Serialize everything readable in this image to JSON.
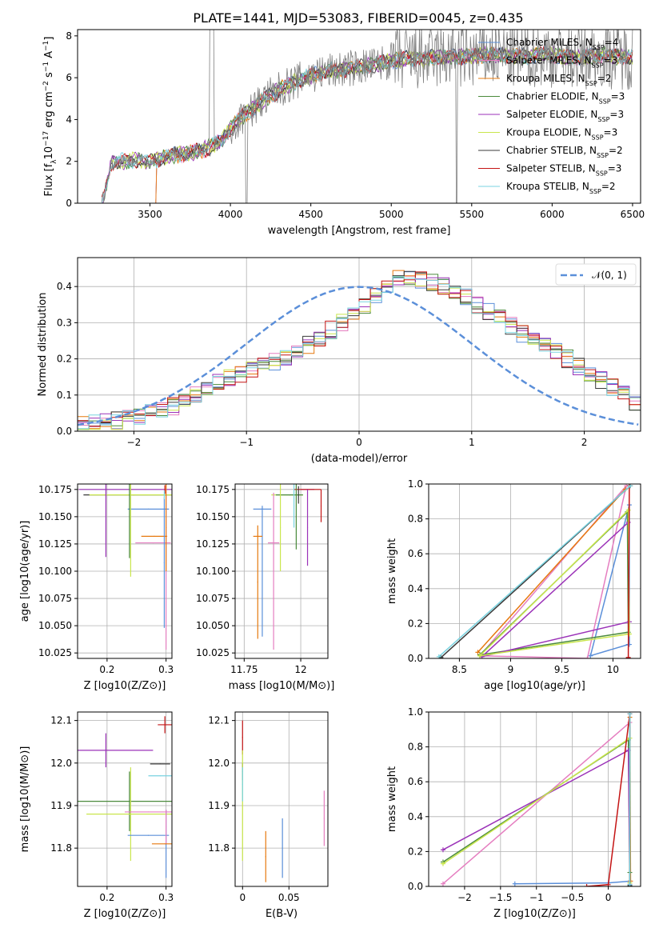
{
  "figure_title": "PLATE=1441, MJD=53083, FIBERID=0045, z=0.435",
  "colors": {
    "chabrier_miles": "#5b8fd9",
    "salpeter_miles": "#e57ec0",
    "kroupa_miles": "#e6790f",
    "chabrier_elodie": "#4a8a3c",
    "salpeter_elodie": "#9b32b8",
    "kroupa_elodie": "#c9e64c",
    "chabrier_stelib": "#3a3a3a",
    "salpeter_stelib": "#c41414",
    "kroupa_stelib": "#79d3e0",
    "data_grey": "#808080",
    "normal_curve": "#5b8fd9"
  },
  "chart_data": [
    {
      "type": "line",
      "name": "spectrum",
      "xlabel": "wavelength [Angstrom, rest frame]",
      "ylabel_parts": [
        "Flux [f",
        "λ",
        "10",
        "−17",
        " erg cm",
        "−2",
        " s",
        "−1",
        " A",
        "−1",
        "]"
      ],
      "xlim": [
        3050,
        6550
      ],
      "ylim": [
        0,
        8.3
      ],
      "xticks": [
        3500,
        4000,
        4500,
        5000,
        5500,
        6000,
        6500
      ],
      "yticks": [
        0,
        2,
        4,
        6,
        8
      ],
      "legend_position": "top-right",
      "legend": [
        {
          "base": "Chabrier MILES, N",
          "sub": "SSP",
          "tail": "=4",
          "color_key": "chabrier_miles"
        },
        {
          "base": "Salpeter MILES, N",
          "sub": "SSP",
          "tail": "=3",
          "color_key": "salpeter_miles"
        },
        {
          "base": "Kroupa MILES, N",
          "sub": "SSP",
          "tail": "=2",
          "color_key": "kroupa_miles"
        },
        {
          "base": "Chabrier ELODIE, N",
          "sub": "SSP",
          "tail": "=3",
          "color_key": "chabrier_elodie"
        },
        {
          "base": "Salpeter ELODIE, N",
          "sub": "SSP",
          "tail": "=3",
          "color_key": "salpeter_elodie"
        },
        {
          "base": "Kroupa ELODIE, N",
          "sub": "SSP",
          "tail": "=3",
          "color_key": "kroupa_elodie"
        },
        {
          "base": "Chabrier STELIB, N",
          "sub": "SSP",
          "tail": "=2",
          "color_key": "chabrier_stelib"
        },
        {
          "base": "Salpeter STELIB, N",
          "sub": "SSP",
          "tail": "=3",
          "color_key": "salpeter_stelib"
        },
        {
          "base": "Kroupa STELIB, N",
          "sub": "SSP",
          "tail": "=2",
          "color_key": "kroupa_stelib"
        }
      ],
      "continuum": {
        "x": [
          3200,
          3260,
          3300,
          3400,
          3500,
          3550,
          3650,
          3750,
          3850,
          3950,
          4000,
          4100,
          4200,
          4300,
          4400,
          4500,
          4600,
          4700,
          4800,
          4900,
          5000,
          5100,
          5200,
          5300,
          5400,
          5500,
          5600,
          5700,
          5800,
          5900,
          6000,
          6100,
          6200,
          6300,
          6400,
          6500
        ],
        "y": [
          0,
          1.9,
          2.0,
          2.05,
          2.0,
          2.1,
          2.3,
          2.4,
          2.6,
          3.0,
          3.6,
          4.3,
          4.9,
          5.4,
          5.8,
          6.1,
          6.3,
          6.4,
          6.5,
          6.6,
          6.8,
          6.9,
          6.9,
          7.0,
          7.0,
          7.0,
          7.1,
          7.1,
          7.0,
          7.1,
          7.1,
          7.0,
          7.0,
          7.1,
          7.0,
          7.0
        ]
      }
    },
    {
      "type": "histogram",
      "name": "residuals",
      "xlabel": "(data-model)/error",
      "ylabel": "Normed distribution",
      "xlim": [
        -2.5,
        2.5
      ],
      "ylim": [
        0,
        0.48
      ],
      "xticks": [
        -2,
        -1,
        0,
        1,
        2
      ],
      "yticks": [
        0.0,
        0.1,
        0.2,
        0.3,
        0.4
      ],
      "grid": true,
      "legend_position": "top-right",
      "normal_label": "𝒩(0, 1)",
      "bin_width": 0.1,
      "envelope": [
        0.02,
        0.025,
        0.03,
        0.03,
        0.035,
        0.04,
        0.05,
        0.06,
        0.07,
        0.085,
        0.1,
        0.12,
        0.14,
        0.15,
        0.16,
        0.17,
        0.18,
        0.19,
        0.2,
        0.22,
        0.24,
        0.26,
        0.28,
        0.3,
        0.32,
        0.35,
        0.38,
        0.4,
        0.42,
        0.43,
        0.42,
        0.41,
        0.4,
        0.38,
        0.37,
        0.35,
        0.33,
        0.31,
        0.29,
        0.27,
        0.26,
        0.24,
        0.22,
        0.2,
        0.18,
        0.16,
        0.14,
        0.12,
        0.1,
        0.08
      ]
    },
    {
      "type": "scatter",
      "name": "age_vs_Z",
      "xlabel": "Z [log10(Z/Z⊙)]",
      "ylabel": "age  [log10(age/yr)]",
      "xlim": [
        0.15,
        0.31
      ],
      "ylim": [
        10.02,
        10.18
      ],
      "xticks": [
        0.2,
        0.3
      ],
      "yticks": [
        10.025,
        10.05,
        10.075,
        10.1,
        10.125,
        10.15,
        10.175
      ],
      "grid": true,
      "points": [
        {
          "x": 0.242,
          "y": 10.175,
          "xerr": 0.09,
          "yerr": 0.0,
          "color_key": "salpeter_elodie"
        },
        {
          "x": 0.245,
          "y": 10.17,
          "xerr": 0.085,
          "yerr": 0.0,
          "color_key": "chabrier_stelib"
        },
        {
          "x": 0.24,
          "y": 10.17,
          "xerr": 0.07,
          "yerr": 0.0,
          "color_key": "kroupa_elodie"
        },
        {
          "x": 0.27,
          "y": 10.157,
          "xerr": 0.035,
          "yerr": 0.0,
          "color_key": "chabrier_miles"
        },
        {
          "x": 0.198,
          "y": 10.17,
          "xerr": 0.0,
          "yerr": 0.057,
          "color_key": "salpeter_elodie"
        },
        {
          "x": 0.238,
          "y": 10.17,
          "xerr": 0.0,
          "yerr": 0.058,
          "color_key": "chabrier_elodie"
        },
        {
          "x": 0.24,
          "y": 10.15,
          "xerr": 0.0,
          "yerr": 0.055,
          "color_key": "kroupa_elodie"
        },
        {
          "x": 0.28,
          "y": 10.132,
          "xerr": 0.022,
          "yerr": 0.0,
          "color_key": "kroupa_miles"
        },
        {
          "x": 0.278,
          "y": 10.126,
          "xerr": 0.03,
          "yerr": 0.0,
          "color_key": "salpeter_miles"
        },
        {
          "x": 0.3,
          "y": 10.11,
          "xerr": 0.0,
          "yerr": 0.082,
          "color_key": "salpeter_miles"
        },
        {
          "x": 0.297,
          "y": 10.108,
          "xerr": 0.0,
          "yerr": 0.06,
          "color_key": "chabrier_miles"
        },
        {
          "x": 0.3,
          "y": 10.14,
          "xerr": 0.0,
          "yerr": 0.04,
          "color_key": "kroupa_miles"
        },
        {
          "x": 0.298,
          "y": 10.175,
          "xerr": 0.0,
          "yerr": 0.004,
          "color_key": "salpeter_stelib"
        },
        {
          "x": 0.297,
          "y": 10.17,
          "xerr": 0.0,
          "yerr": 0.004,
          "color_key": "kroupa_stelib"
        }
      ]
    },
    {
      "type": "scatter",
      "name": "age_vs_mass",
      "xlabel": "mass [log10(M/M⊙)]",
      "xlim": [
        11.71,
        12.12
      ],
      "ylim": [
        10.02,
        10.18
      ],
      "xticks": [
        11.75,
        12.0
      ],
      "yticks": [
        10.025,
        10.05,
        10.075,
        10.1,
        10.125,
        10.15,
        10.175
      ],
      "grid": true,
      "points": [
        {
          "x": 11.83,
          "y": 10.157,
          "xerr": 0.04,
          "yerr": 0.0,
          "color_key": "chabrier_miles"
        },
        {
          "x": 11.94,
          "y": 10.17,
          "xerr": 0.07,
          "yerr": 0.0,
          "color_key": "kroupa_elodie"
        },
        {
          "x": 11.95,
          "y": 10.17,
          "xerr": 0.06,
          "yerr": 0.0,
          "color_key": "chabrier_elodie"
        },
        {
          "x": 12.03,
          "y": 10.175,
          "xerr": 0.03,
          "yerr": 0.0,
          "color_key": "salpeter_elodie"
        },
        {
          "x": 12.03,
          "y": 10.175,
          "xerr": 0.06,
          "yerr": 0.0,
          "color_key": "salpeter_stelib"
        },
        {
          "x": 12.09,
          "y": 10.16,
          "xerr": 0.0,
          "yerr": 0.015,
          "color_key": "salpeter_stelib"
        },
        {
          "x": 11.99,
          "y": 10.17,
          "xerr": 0.0,
          "yerr": 0.008,
          "color_key": "chabrier_stelib"
        },
        {
          "x": 11.83,
          "y": 10.1,
          "xerr": 0.0,
          "yerr": 0.06,
          "color_key": "chabrier_miles"
        },
        {
          "x": 11.81,
          "y": 10.09,
          "xerr": 0.0,
          "yerr": 0.052,
          "color_key": "kroupa_miles"
        },
        {
          "x": 11.88,
          "y": 10.1,
          "xerr": 0.0,
          "yerr": 0.072,
          "color_key": "salpeter_miles"
        },
        {
          "x": 11.81,
          "y": 10.132,
          "xerr": 0.02,
          "yerr": 0.0,
          "color_key": "kroupa_miles"
        },
        {
          "x": 11.88,
          "y": 10.126,
          "xerr": 0.025,
          "yerr": 0.0,
          "color_key": "salpeter_miles"
        },
        {
          "x": 11.91,
          "y": 10.14,
          "xerr": 0.0,
          "yerr": 0.04,
          "color_key": "kroupa_elodie"
        },
        {
          "x": 11.98,
          "y": 10.15,
          "xerr": 0.0,
          "yerr": 0.03,
          "color_key": "chabrier_elodie"
        },
        {
          "x": 12.03,
          "y": 10.14,
          "xerr": 0.0,
          "yerr": 0.035,
          "color_key": "salpeter_elodie"
        },
        {
          "x": 11.97,
          "y": 10.16,
          "xerr": 0.0,
          "yerr": 0.02,
          "color_key": "kroupa_stelib"
        }
      ]
    },
    {
      "type": "line",
      "name": "mass_weight_vs_age",
      "xlabel": "age  [log10(age/yr)]",
      "ylabel": "mass weight",
      "xlim": [
        8.2,
        10.27
      ],
      "ylim": [
        0,
        1
      ],
      "xticks": [
        8.5,
        9.0,
        9.5,
        10.0
      ],
      "yticks": [
        0.0,
        0.2,
        0.4,
        0.6,
        0.8,
        1.0
      ],
      "grid": true,
      "series": [
        {
          "color_key": "chabrier_miles",
          "x": [
            10.15,
            9.78,
            10.16,
            10.16
          ],
          "y": [
            0.08,
            0.015,
            0.88,
            0.08
          ]
        },
        {
          "color_key": "salpeter_miles",
          "x": [
            8.7,
            9.75,
            10.13,
            8.7
          ],
          "y": [
            0.015,
            0.0,
            0.99,
            0.015
          ]
        },
        {
          "color_key": "kroupa_miles",
          "x": [
            8.68,
            10.12
          ],
          "y": [
            0.035,
            0.97
          ]
        },
        {
          "color_key": "chabrier_elodie",
          "x": [
            8.7,
            10.14,
            10.15,
            8.7
          ],
          "y": [
            0.02,
            0.84,
            0.15,
            0.02
          ]
        },
        {
          "color_key": "salpeter_elodie",
          "x": [
            8.72,
            10.15,
            10.16,
            8.72
          ],
          "y": [
            0.01,
            0.78,
            0.21,
            0.01
          ]
        },
        {
          "color_key": "kroupa_elodie",
          "x": [
            8.7,
            10.15,
            10.16,
            8.7
          ],
          "y": [
            0.015,
            0.85,
            0.14,
            0.015
          ]
        },
        {
          "color_key": "chabrier_stelib",
          "x": [
            8.32,
            10.17
          ],
          "y": [
            0.005,
            0.99
          ]
        },
        {
          "color_key": "salpeter_stelib",
          "x": [
            10.15,
            10.16
          ],
          "y": [
            0.005,
            0.99
          ]
        },
        {
          "color_key": "kroupa_stelib",
          "x": [
            8.3,
            10.17
          ],
          "y": [
            0.01,
            0.99
          ]
        }
      ]
    },
    {
      "type": "scatter",
      "name": "mass_vs_Z",
      "xlabel": "Z [log10(Z/Z⊙)]",
      "ylabel": "mass [log10(M/M⊙)]",
      "xlim": [
        0.15,
        0.31
      ],
      "ylim": [
        11.71,
        12.12
      ],
      "xticks": [
        0.2,
        0.3
      ],
      "yticks": [
        11.8,
        11.9,
        12.0,
        12.1
      ],
      "grid": true,
      "points": [
        {
          "x": 0.298,
          "y": 12.09,
          "xerr": 0.012,
          "yerr": 0.02,
          "color_key": "salpeter_stelib"
        },
        {
          "x": 0.198,
          "y": 12.03,
          "xerr": 0.08,
          "yerr": 0.04,
          "color_key": "salpeter_elodie"
        },
        {
          "x": 0.29,
          "y": 11.998,
          "xerr": 0.017,
          "yerr": 0.0,
          "color_key": "chabrier_stelib"
        },
        {
          "x": 0.29,
          "y": 11.97,
          "xerr": 0.02,
          "yerr": 0.0,
          "color_key": "kroupa_stelib"
        },
        {
          "x": 0.238,
          "y": 11.91,
          "xerr": 0.09,
          "yerr": 0.07,
          "color_key": "chabrier_elodie"
        },
        {
          "x": 0.24,
          "y": 11.88,
          "xerr": 0.075,
          "yerr": 0.11,
          "color_key": "kroupa_elodie"
        },
        {
          "x": 0.27,
          "y": 11.885,
          "xerr": 0.04,
          "yerr": 0.0,
          "color_key": "salpeter_miles"
        },
        {
          "x": 0.27,
          "y": 11.83,
          "xerr": 0.035,
          "yerr": 0.0,
          "color_key": "chabrier_miles"
        },
        {
          "x": 0.3,
          "y": 11.81,
          "xerr": 0.0,
          "yerr": 0.08,
          "color_key": "chabrier_miles"
        },
        {
          "x": 0.3,
          "y": 11.85,
          "xerr": 0.0,
          "yerr": 0.04,
          "color_key": "salpeter_miles"
        },
        {
          "x": 0.298,
          "y": 11.81,
          "xerr": 0.022,
          "yerr": 0.0,
          "color_key": "kroupa_miles"
        }
      ]
    },
    {
      "type": "scatter",
      "name": "mass_vs_EBV",
      "xlabel": "E(B-V)",
      "xlim": [
        -0.008,
        0.092
      ],
      "ylim": [
        11.71,
        12.12
      ],
      "xticks": [
        0.0,
        0.05
      ],
      "yticks": [
        11.8,
        11.9,
        12.0,
        12.1
      ],
      "grid": true,
      "points": [
        {
          "x": 0.0,
          "y": 12.06,
          "xerr": 0.0,
          "yerr": 0.04,
          "color_key": "salpeter_stelib"
        },
        {
          "x": 0.0,
          "y": 11.98,
          "xerr": 0.0,
          "yerr": 0.02,
          "color_key": "chabrier_stelib"
        },
        {
          "x": 0.0,
          "y": 11.9,
          "xerr": 0.0,
          "yerr": 0.13,
          "color_key": "kroupa_elodie"
        },
        {
          "x": 0.0,
          "y": 11.95,
          "xerr": 0.0,
          "yerr": 0.04,
          "color_key": "kroupa_stelib"
        },
        {
          "x": 0.025,
          "y": 11.78,
          "xerr": 0.0,
          "yerr": 0.06,
          "color_key": "kroupa_miles"
        },
        {
          "x": 0.043,
          "y": 11.8,
          "xerr": 0.0,
          "yerr": 0.07,
          "color_key": "chabrier_miles"
        },
        {
          "x": 0.088,
          "y": 11.87,
          "xerr": 0.0,
          "yerr": 0.065,
          "color_key": "salpeter_miles"
        }
      ]
    },
    {
      "type": "line",
      "name": "mass_weight_vs_Z",
      "xlabel": "Z [log10(Z/Z⊙)]",
      "ylabel": "mass weight",
      "xlim": [
        -2.5,
        0.45
      ],
      "ylim": [
        0,
        1
      ],
      "xticks": [
        -2.0,
        -1.5,
        -1.0,
        -0.5,
        0.0
      ],
      "yticks": [
        0.0,
        0.2,
        0.4,
        0.6,
        0.8,
        1.0
      ],
      "grid": true,
      "series": [
        {
          "color_key": "chabrier_miles",
          "x": [
            -1.3,
            0.0,
            0.3
          ],
          "y": [
            0.015,
            0.02,
            0.03
          ]
        },
        {
          "color_key": "salpeter_miles",
          "x": [
            -2.3,
            0.3,
            0.3
          ],
          "y": [
            0.015,
            0.94,
            0.02
          ]
        },
        {
          "color_key": "kroupa_miles",
          "x": [
            0.3,
            0.31
          ],
          "y": [
            0.97,
            0.03
          ]
        },
        {
          "color_key": "chabrier_elodie",
          "x": [
            -2.3,
            0.28,
            0.3
          ],
          "y": [
            0.14,
            0.84,
            0.08
          ]
        },
        {
          "color_key": "salpeter_elodie",
          "x": [
            -2.3,
            0.28,
            0.3
          ],
          "y": [
            0.21,
            0.78,
            0.01
          ]
        },
        {
          "color_key": "kroupa_elodie",
          "x": [
            -2.3,
            0.3,
            0.3
          ],
          "y": [
            0.13,
            0.85,
            0.02
          ]
        },
        {
          "color_key": "chabrier_stelib",
          "x": [
            0.3,
            0.3
          ],
          "y": [
            0.005,
            0.99
          ]
        },
        {
          "color_key": "salpeter_stelib",
          "x": [
            -0.3,
            0.0,
            0.3
          ],
          "y": [
            0.0,
            0.01,
            0.99
          ]
        },
        {
          "color_key": "kroupa_stelib",
          "x": [
            0.3,
            0.3
          ],
          "y": [
            0.01,
            0.99
          ]
        }
      ]
    }
  ]
}
